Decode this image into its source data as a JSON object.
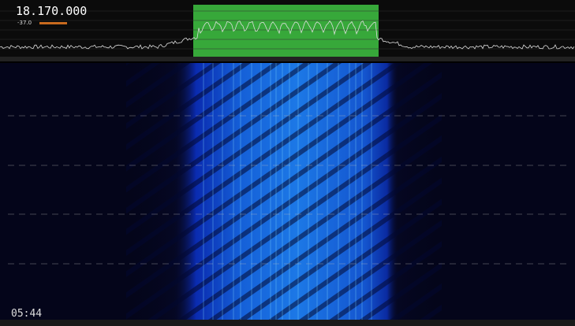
{
  "display": {
    "frequency": "18.170.000",
    "level": "-37.0",
    "clock": "05:44"
  }
}
